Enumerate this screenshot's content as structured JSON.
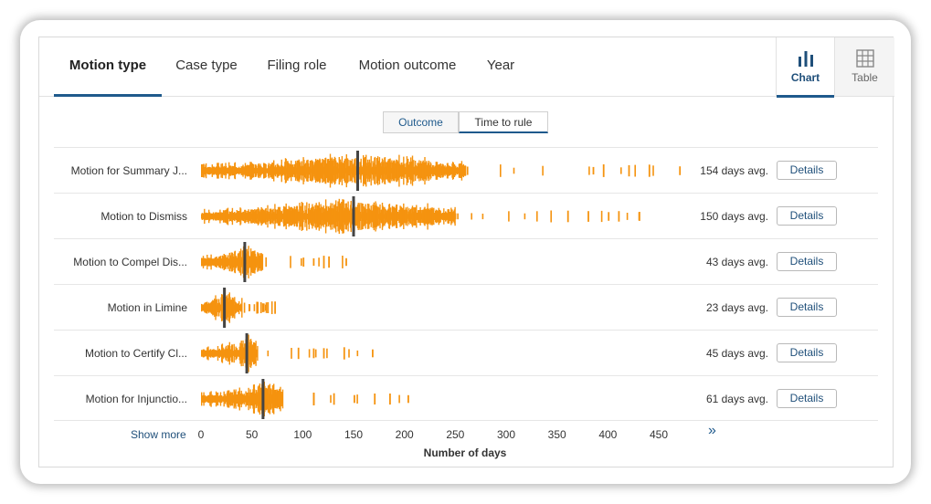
{
  "tabs": [
    {
      "label": "Motion type",
      "active": true
    },
    {
      "label": "Case type",
      "active": false
    },
    {
      "label": "Filing role",
      "active": false
    },
    {
      "label": "Motion outcome",
      "active": false
    },
    {
      "label": "Year",
      "active": false
    }
  ],
  "view_toggle": {
    "chart_label": "Chart",
    "chart_icon": "bar-chart-icon",
    "table_label": "Table",
    "table_icon": "table-grid-icon",
    "selected": "Chart"
  },
  "segmented": {
    "outcome_label": "Outcome",
    "time_label": "Time to rule",
    "selected": "Time to rule"
  },
  "colors": {
    "accent": "#1f5a8c",
    "tick_mark": "#f5930f",
    "avg_marker": "#444444"
  },
  "chart_data": {
    "type": "scatter",
    "xlabel": "Number of days",
    "xlim": [
      0,
      480
    ],
    "x_ticks": [
      0,
      50,
      100,
      150,
      200,
      250,
      300,
      350,
      400,
      450
    ],
    "rows": [
      {
        "label": "Motion for Summary J...",
        "avg_days": 154,
        "avg_text": "154 days avg.",
        "min": 0,
        "dense_to": 260,
        "max": 470,
        "outliers": [
          385,
          395,
          420,
          440,
          470
        ]
      },
      {
        "label": "Motion to Dismiss",
        "avg_days": 150,
        "avg_text": "150 days avg.",
        "min": 0,
        "dense_to": 250,
        "max": 430,
        "outliers": [
          360,
          380,
          400,
          410,
          430
        ]
      },
      {
        "label": "Motion to Compel Dis...",
        "avg_days": 43,
        "avg_text": "43 days avg.",
        "min": 0,
        "dense_to": 60,
        "max": 142,
        "outliers": [
          100,
          110,
          120,
          125,
          142
        ]
      },
      {
        "label": "Motion in Limine",
        "avg_days": 23,
        "avg_text": "23 days avg.",
        "min": 0,
        "dense_to": 40,
        "max": 72,
        "outliers": [
          55,
          60,
          65,
          72
        ]
      },
      {
        "label": "Motion to Certify Cl...",
        "avg_days": 45,
        "avg_text": "45 days avg.",
        "min": 0,
        "dense_to": 55,
        "max": 168,
        "outliers": [
          95,
          110,
          120,
          140,
          168
        ]
      },
      {
        "label": "Motion for Injunctio...",
        "avg_days": 61,
        "avg_text": "61 days avg.",
        "min": 0,
        "dense_to": 80,
        "max": 203,
        "outliers": [
          110,
          130,
          150,
          170,
          185,
          203
        ]
      }
    ]
  },
  "details_label": "Details",
  "show_more_label": "Show more",
  "more_arrow": "»"
}
